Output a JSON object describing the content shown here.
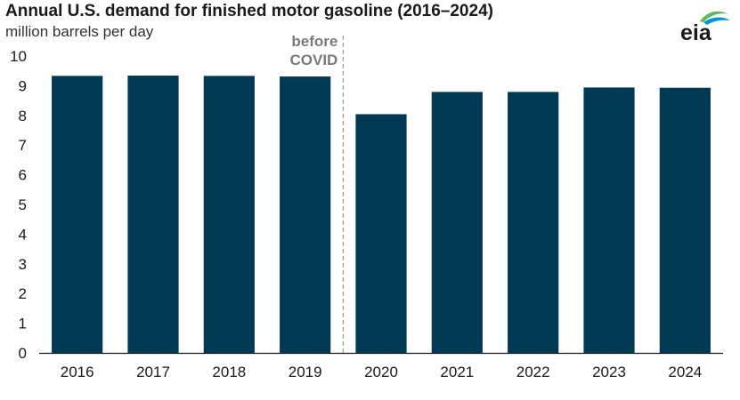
{
  "header": {
    "title": "Annual U.S. demand for finished motor gasoline (2016–2024)",
    "subtitle": "million barrels per day",
    "logo_text": "eia"
  },
  "chart_data": {
    "type": "bar",
    "title": "Annual U.S. demand for finished motor gasoline (2016–2024)",
    "ylabel": "million barrels per day",
    "categories": [
      "2016",
      "2017",
      "2018",
      "2019",
      "2020",
      "2021",
      "2022",
      "2023",
      "2024"
    ],
    "values": [
      9.33,
      9.34,
      9.33,
      9.31,
      8.04,
      8.79,
      8.79,
      8.94,
      8.93
    ],
    "ylim": [
      0,
      10
    ],
    "yticks": [
      0,
      1,
      2,
      3,
      4,
      5,
      6,
      7,
      8,
      9,
      10
    ],
    "grid": false,
    "annotation": {
      "lines": [
        "before",
        "COVID"
      ],
      "between": [
        "2019",
        "2020"
      ]
    },
    "colors": {
      "bar": "#003953",
      "divider": "#9a9a9a",
      "annotation": "#7a7a7a",
      "logo_green": "#5cb85c",
      "logo_blue": "#0096d6"
    }
  }
}
